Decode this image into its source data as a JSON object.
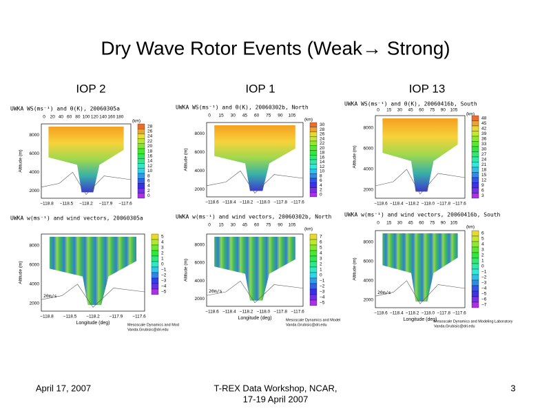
{
  "header": {
    "title": "Dry Wave Rotor Events (Weak→ Strong)"
  },
  "columns": [
    "IOP 2",
    "IOP 1",
    "IOP 13"
  ],
  "panels": [
    {
      "title": "UWKA WS(ms⁻¹) and Θ(K), 20060305a",
      "top_ticks": [
        "0",
        "20",
        "40",
        "60",
        "80",
        "100",
        "120",
        "140",
        "160",
        "180"
      ],
      "top_unit": "(km)",
      "y_label": "Altitude (m)",
      "y_ticks": [
        "2000",
        "4000",
        "6000",
        "8000"
      ],
      "x_ticks": [
        "−118.8",
        "−118.5",
        "−118.2",
        "−117.9",
        "−117.6"
      ],
      "colorbar": [
        "28",
        "26",
        "24",
        "22",
        "20",
        "18",
        "16",
        "14",
        "12",
        "10",
        "8",
        "6",
        "4",
        "2",
        "0"
      ]
    },
    {
      "title": "UWKA WS(ms⁻¹) and Θ(K), 20060302b, North",
      "top_ticks": [
        "0",
        "15",
        "30",
        "45",
        "60",
        "75",
        "90",
        "105"
      ],
      "top_unit": "(km)",
      "y_label": "Altitude (m)",
      "y_ticks": [
        "2000",
        "4000",
        "6000",
        "8000"
      ],
      "x_ticks": [
        "−118.6",
        "−118.4",
        "−118.2",
        "−118.0",
        "−117.8",
        "−117.6"
      ],
      "colorbar": [
        "30",
        "28",
        "26",
        "24",
        "22",
        "20",
        "18",
        "16",
        "14",
        "12",
        "10",
        "8",
        "6",
        "4",
        "2",
        "0"
      ]
    },
    {
      "title": "UWKA WS(ms⁻¹) and Θ(K), 20060416b, South",
      "top_ticks": [
        "0",
        "15",
        "30",
        "45",
        "60",
        "75",
        "90",
        "105"
      ],
      "top_unit": "(km)",
      "y_label": "Altitude (m)",
      "y_ticks": [
        "2000",
        "4000",
        "6000",
        "8000"
      ],
      "x_ticks": [
        "−118.6",
        "−118.4",
        "−118.2",
        "−118.0",
        "−117.8",
        "−117.6"
      ],
      "colorbar": [
        "48",
        "45",
        "42",
        "39",
        "36",
        "33",
        "30",
        "27",
        "24",
        "21",
        "18",
        "15",
        "12",
        "9",
        "6",
        "3"
      ]
    },
    {
      "title": "UWKA w(ms⁻¹) and wind vectors, 20060305a",
      "y_label": "Altitude (m)",
      "y_ticks": [
        "2000",
        "4000",
        "6000",
        "8000"
      ],
      "x_ticks": [
        "−118.8",
        "−118.5",
        "−118.2",
        "−117.9",
        "−117.6"
      ],
      "x_label": "Longitude (deg)",
      "scale": "20m/s",
      "colorbar": [
        "5",
        "4",
        "3",
        "2",
        "1",
        "0",
        "−1",
        "−2",
        "−3",
        "−4",
        "−5"
      ],
      "credit": [
        "Mesoscale Dynamics and Mod",
        "Vanda.Grubisic@dri.edu"
      ]
    },
    {
      "title": "UWKA w(ms⁻¹) and wind vectors, 20060302b, North",
      "top_ticks": [
        "0",
        "15",
        "30",
        "45",
        "60",
        "75",
        "90",
        "105"
      ],
      "top_unit": "(km)",
      "y_label": "Altitude (m)",
      "y_ticks": [
        "2000",
        "4000",
        "6000",
        "8000"
      ],
      "x_ticks": [
        "−118.6",
        "−118.4",
        "−118.2",
        "−118.0",
        "−117.8",
        "−117.6"
      ],
      "x_label": "Longitude (deg)",
      "scale": "20m/s",
      "colorbar": [
        "7",
        "6",
        "5",
        "4",
        "3",
        "2",
        "1",
        "0",
        "−1",
        "−2",
        "−3",
        "−4",
        "−5"
      ],
      "credit": [
        "Mesoscale Dynamics and Model",
        "Vanda.Grubisic@dri.edu"
      ]
    },
    {
      "title": "UWKA w(ms⁻¹) and wind vectors, 20060416b, South",
      "top_ticks": [
        "0",
        "15",
        "30",
        "45",
        "60",
        "75",
        "90",
        "105"
      ],
      "top_unit": "(km)",
      "y_label": "Altitude (m)",
      "y_ticks": [
        "2000",
        "4000",
        "6000",
        "8000"
      ],
      "x_ticks": [
        "−118.6",
        "−118.4",
        "−118.2",
        "−118.0",
        "−117.8",
        "−117.6"
      ],
      "x_label": "Longitude (deg)",
      "scale": "20m/s",
      "colorbar": [
        "6",
        "5",
        "4",
        "3",
        "2",
        "1",
        "0",
        "−1",
        "−2",
        "−3",
        "−4",
        "−5",
        "−6",
        "−7"
      ],
      "credit": [
        "Mesoscale Dynamics and Modeling Laboratory",
        "Vanda.Grubisic@dri.edu"
      ]
    }
  ],
  "footer": {
    "date": "April 17, 2007",
    "event": [
      "T-REX Data Workshop, NCAR,",
      "17-19 April 2007"
    ],
    "page": "3"
  }
}
